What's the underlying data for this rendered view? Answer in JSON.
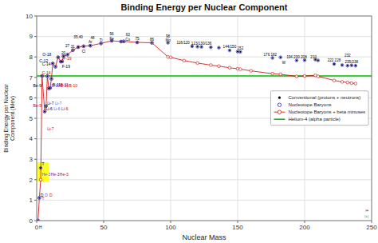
{
  "chart_data": {
    "type": "scatter",
    "title": "Binding Energy per Nuclear Component",
    "x_label": "Nuclear Mass",
    "y_label": "Binding Energy per Nuclear\nComponent (Mev)",
    "xlim": [
      0,
      250
    ],
    "ylim": [
      0,
      10
    ],
    "xticks": [
      0,
      50,
      100,
      150,
      200,
      250
    ],
    "yticks": [
      0,
      1,
      2,
      3,
      4,
      5,
      6,
      7,
      8,
      9,
      10
    ],
    "grid": true,
    "legend": "right",
    "highlight_box": {
      "x": [
        0,
        9
      ],
      "y": [
        1.9,
        2.85
      ],
      "color": "yellow"
    },
    "series": [
      {
        "name": "Conventional (protons + neutrons)",
        "type": "scatter",
        "marker": "dot",
        "line_style": "none",
        "color": "#000000",
        "x": [
          1,
          2,
          3,
          4,
          6,
          7,
          8,
          9,
          10,
          11,
          12,
          14,
          16,
          18,
          19,
          20,
          23,
          27,
          31,
          35,
          40,
          48,
          56,
          63,
          65,
          75,
          86,
          98,
          116,
          120,
          123,
          130,
          136,
          144,
          150,
          152,
          176,
          182,
          194,
          200,
          208,
          210,
          222,
          228,
          232,
          235,
          238
        ],
        "values": [
          0.0,
          1.11,
          2.57,
          7.07,
          5.33,
          5.6,
          7.06,
          6.46,
          6.48,
          6.93,
          7.68,
          7.52,
          7.98,
          7.77,
          7.78,
          8.03,
          8.11,
          8.33,
          8.48,
          8.52,
          8.55,
          8.66,
          8.79,
          8.75,
          8.76,
          8.71,
          8.69,
          8.69,
          8.52,
          8.5,
          8.49,
          8.47,
          8.45,
          8.32,
          8.26,
          8.25,
          7.95,
          7.98,
          7.83,
          7.84,
          7.87,
          7.83,
          7.65,
          7.6,
          7.57,
          7.59,
          7.57
        ]
      },
      {
        "name": "Nucleotope Baryons",
        "type": "scatter",
        "marker": "circle",
        "line_style": "none",
        "color": "#0000cc",
        "x": [
          1,
          2,
          3,
          4,
          6,
          7,
          8,
          9,
          10,
          11,
          12,
          14,
          16,
          18,
          19,
          20,
          23,
          27,
          31,
          35,
          40,
          48,
          56,
          63,
          65,
          75,
          86,
          98,
          116,
          120,
          123,
          130,
          136,
          144,
          150,
          152,
          176,
          182,
          194,
          200,
          208,
          210,
          222,
          228,
          232,
          235,
          238
        ],
        "values": [
          0.0,
          1.11,
          2.57,
          7.07,
          5.33,
          5.6,
          7.06,
          6.46,
          6.48,
          6.93,
          7.68,
          7.52,
          7.98,
          7.77,
          7.78,
          8.03,
          8.11,
          8.33,
          8.48,
          8.52,
          8.55,
          8.66,
          8.79,
          8.75,
          8.76,
          8.71,
          8.69,
          8.69,
          8.52,
          8.5,
          8.49,
          8.47,
          8.45,
          8.32,
          8.26,
          8.25,
          7.95,
          7.98,
          7.83,
          7.84,
          7.87,
          7.83,
          7.65,
          7.6,
          7.57,
          7.59,
          7.57
        ]
      },
      {
        "name": "Nucleotope Baryons + beta minuses",
        "type": "line",
        "marker": "circle",
        "line_style": "solid",
        "color": "#cc0000",
        "x": [
          1,
          2,
          3,
          4,
          6,
          7,
          8,
          9,
          10,
          11,
          12,
          14,
          16,
          18,
          19,
          20,
          23,
          27,
          31,
          35,
          40,
          48,
          56,
          63,
          65,
          75,
          86,
          98,
          100,
          110,
          120,
          130,
          136,
          144,
          150,
          152,
          160,
          176,
          182,
          194,
          200,
          208,
          210,
          222,
          228,
          232,
          235,
          238
        ],
        "values": [
          0.0,
          1.11,
          2.0,
          7.07,
          5.33,
          5.6,
          7.06,
          6.46,
          6.48,
          6.93,
          7.68,
          7.52,
          7.98,
          7.77,
          7.78,
          8.03,
          8.11,
          8.33,
          8.48,
          8.52,
          8.55,
          8.66,
          8.79,
          8.75,
          8.76,
          8.71,
          8.69,
          8.0,
          7.98,
          7.82,
          7.7,
          7.6,
          7.55,
          7.47,
          7.42,
          7.4,
          7.32,
          7.18,
          7.15,
          7.05,
          7.07,
          7.1,
          7.05,
          6.85,
          6.78,
          6.75,
          6.72,
          6.7
        ]
      },
      {
        "name": "Helium-4 (alpha particle)",
        "type": "hline",
        "marker": "none",
        "line_style": "solid",
        "color": "#00bb00",
        "values": [
          7.07
        ]
      }
    ],
    "annotations": [
      {
        "x": 1,
        "y": 0.0,
        "text": "H",
        "color": "#000000"
      },
      {
        "x": 2,
        "y": 1.11,
        "text": "D",
        "color": "#000000"
      },
      {
        "x": 2,
        "y": 1.11,
        "text": "D",
        "color": "#5555ff"
      },
      {
        "x": 2,
        "y": 1.11,
        "text": "D",
        "color": "#cc0000"
      },
      {
        "x": 3,
        "y": 2.57,
        "text": "T",
        "color": "#000000"
      },
      {
        "x": 3,
        "y": 2.57,
        "text": "He-3",
        "color": "#5555ff"
      },
      {
        "x": 3,
        "y": 2.57,
        "text": "He-3",
        "color": "#8800aa"
      },
      {
        "x": 3,
        "y": 2.57,
        "text": "He-3",
        "color": "#cc0000"
      },
      {
        "x": 3,
        "y": 2.0,
        "text": "T",
        "color": "#cc0000"
      },
      {
        "x": 6,
        "y": 5.33,
        "text": "Li-6",
        "color": "#000000"
      },
      {
        "x": 6,
        "y": 5.33,
        "text": "Li-6",
        "color": "#5555ff"
      },
      {
        "x": 6,
        "y": 5.33,
        "text": "Li-6",
        "color": "#cc0000"
      },
      {
        "x": 7,
        "y": 5.6,
        "text": "Li-7",
        "color": "#000000"
      },
      {
        "x": 7,
        "y": 5.6,
        "text": "Li-7",
        "color": "#5555ff"
      },
      {
        "x": 7,
        "y": 4.8,
        "text": "Li-7",
        "color": "#cc0000"
      },
      {
        "x": 9,
        "y": 6.46,
        "text": "Be-9",
        "color": "#000000"
      },
      {
        "x": 9,
        "y": 6.0,
        "text": "Be-9",
        "color": "#cc0000"
      },
      {
        "x": 10,
        "y": 6.48,
        "text": "B-10",
        "color": "#5555ff"
      },
      {
        "x": 10,
        "y": 6.48,
        "text": "B-10",
        "color": "#cc0000"
      },
      {
        "x": 10,
        "y": 6.48,
        "text": "B-10",
        "color": "#cc0000"
      },
      {
        "x": 11,
        "y": 6.93,
        "text": "B-11",
        "color": "#000000"
      },
      {
        "x": 11,
        "y": 6.93,
        "text": "B-11",
        "color": "#cc0000"
      },
      {
        "x": 12,
        "y": 7.68,
        "text": "C-12",
        "color": "#000000"
      },
      {
        "x": 14,
        "y": 7.52,
        "text": "C-14",
        "color": "#000000"
      },
      {
        "x": 14,
        "y": 7.52,
        "text": "C-14",
        "color": "#cc0000"
      },
      {
        "x": 18,
        "y": 7.77,
        "text": "F-19",
        "color": "#000000"
      },
      {
        "x": 19,
        "y": 7.78,
        "text": "F-19",
        "color": "#cc0000"
      },
      {
        "x": 16,
        "y": 7.98,
        "text": "O-18",
        "color": "#000000"
      },
      {
        "x": 20,
        "y": 8.03,
        "text": "20",
        "color": "#000000"
      },
      {
        "x": 23,
        "y": 8.11,
        "text": "27",
        "color": "#000000"
      },
      {
        "x": 27,
        "y": 8.33,
        "text": "31",
        "color": "#000000"
      },
      {
        "x": 31,
        "y": 8.48,
        "text": "35,40",
        "color": "#000000"
      },
      {
        "x": 35,
        "y": 8.52,
        "text": "Cl",
        "color": "#000000"
      },
      {
        "x": 40,
        "y": 8.55,
        "text": "Ar",
        "color": "#000000"
      },
      {
        "x": 40,
        "y": 8.55,
        "text": "48",
        "color": "#000000"
      },
      {
        "x": 48,
        "y": 8.66,
        "text": "Ti",
        "color": "#000000"
      },
      {
        "x": 56,
        "y": 8.79,
        "text": "56",
        "color": "#000000"
      },
      {
        "x": 56,
        "y": 8.79,
        "text": "Fe",
        "color": "#000000"
      },
      {
        "x": 63,
        "y": 8.75,
        "text": "63",
        "color": "#000000"
      },
      {
        "x": 63,
        "y": 8.75,
        "text": "Cu",
        "color": "#000000"
      },
      {
        "x": 75,
        "y": 8.71,
        "text": "75",
        "color": "#000000"
      },
      {
        "x": 86,
        "y": 8.69,
        "text": "86",
        "color": "#000000"
      },
      {
        "x": 98,
        "y": 8.69,
        "text": "98",
        "color": "#000000"
      },
      {
        "x": 98,
        "y": 8.69,
        "text": "Mo",
        "color": "#000000"
      },
      {
        "x": 116,
        "y": 8.52,
        "text": "116/120",
        "color": "#000000"
      },
      {
        "x": 123,
        "y": 8.49,
        "text": "123/130/136",
        "color": "#000000"
      },
      {
        "x": 144,
        "y": 8.32,
        "text": "144/150",
        "color": "#000000"
      },
      {
        "x": 152,
        "y": 8.25,
        "text": "152",
        "color": "#000000"
      },
      {
        "x": 176,
        "y": 7.95,
        "text": "176 182",
        "color": "#000000"
      },
      {
        "x": 182,
        "y": 7.98,
        "text": "W",
        "color": "#000000"
      },
      {
        "x": 194,
        "y": 7.83,
        "text": "194 200 208",
        "color": "#000000"
      },
      {
        "x": 210,
        "y": 7.83,
        "text": "210",
        "color": "#000000"
      },
      {
        "x": 222,
        "y": 7.65,
        "text": "222 228",
        "color": "#000000"
      },
      {
        "x": 232,
        "y": 7.57,
        "text": "232",
        "color": "#000000"
      },
      {
        "x": 235,
        "y": 7.59,
        "text": "235/238",
        "color": "#000000"
      }
    ],
    "watermark": "℠\n|±|"
  }
}
